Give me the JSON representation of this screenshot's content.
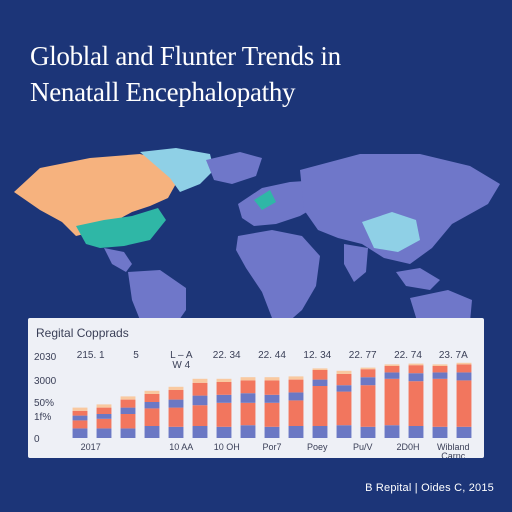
{
  "title": {
    "line1": "Globlal and Flunter Trends in",
    "line2": "Nenatall Encephalopathy"
  },
  "panel_title": "Regital Copprads",
  "footer": "B Repital | Oides C, 2015",
  "colors": {
    "background": "#1c3578",
    "map_land": "#6f77c9",
    "map_orange": "#f6b27e",
    "map_teal": "#2fb7a6",
    "map_lightblue": "#8fd0e6",
    "bar_blue": "#6b78c4",
    "bar_red": "#f2765e",
    "bar_peach": "#f9c9a0"
  },
  "chart_data": {
    "type": "bar",
    "stacked": true,
    "title": "Regital Copprads",
    "ytick_labels": [
      "2030",
      "3000",
      "50%",
      "1f%",
      "0"
    ],
    "top_labels": [
      "215. 1",
      "5",
      "L – A\nW 4",
      "22. 34",
      "22. 44",
      "12. 34",
      "22. 77",
      "22. 74",
      "23. 7A"
    ],
    "x_labels": [
      "2017",
      "",
      "10 AA",
      "10 OH",
      "Por7",
      "Poey",
      "Pu/V",
      "2D0H",
      "Wibland\nCarnc"
    ],
    "series": [
      {
        "color_key": "bar_blue",
        "values": [
          0.12,
          0.12,
          0.12,
          0.15,
          0.14,
          0.15,
          0.14,
          0.16,
          0.14,
          0.15,
          0.15,
          0.16,
          0.14,
          0.16,
          0.15,
          0.14,
          0.14
        ]
      },
      {
        "color_key": "bar_red",
        "values": [
          0.1,
          0.12,
          0.18,
          0.22,
          0.24,
          0.26,
          0.3,
          0.28,
          0.3,
          0.32,
          0.5,
          0.42,
          0.52,
          0.58,
          0.56,
          0.6,
          0.58
        ]
      },
      {
        "color_key": "bar_blue",
        "values": [
          0.06,
          0.06,
          0.08,
          0.08,
          0.1,
          0.12,
          0.1,
          0.12,
          0.1,
          0.1,
          0.08,
          0.08,
          0.1,
          0.08,
          0.1,
          0.08,
          0.1
        ]
      },
      {
        "color_key": "bar_red",
        "values": [
          0.06,
          0.08,
          0.1,
          0.1,
          0.12,
          0.16,
          0.16,
          0.16,
          0.18,
          0.16,
          0.12,
          0.14,
          0.1,
          0.08,
          0.1,
          0.08,
          0.1
        ]
      },
      {
        "color_key": "bar_peach",
        "values": [
          0.04,
          0.04,
          0.04,
          0.04,
          0.04,
          0.05,
          0.04,
          0.04,
          0.04,
          0.04,
          0.02,
          0.04,
          0.02,
          0.02,
          0.02,
          0.02,
          0.02
        ]
      }
    ],
    "ylim": [
      0,
      1
    ],
    "grid": false,
    "legend": "none"
  }
}
